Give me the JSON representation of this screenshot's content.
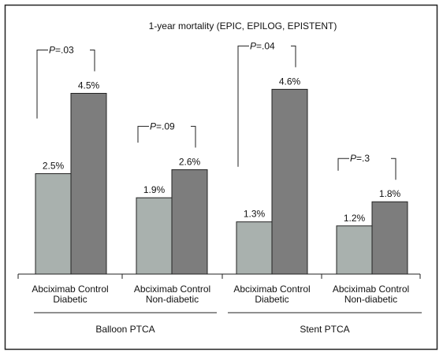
{
  "chart_data": {
    "type": "bar",
    "title": "1-year mortality (EPIC, EPILOG, EPISTENT)",
    "ylabel": "",
    "xlabel": "",
    "ylim": [
      0,
      5.4
    ],
    "series": [
      {
        "name": "Abciximab",
        "values": [
          2.5,
          1.9,
          1.3,
          1.2
        ],
        "labels": [
          "2.5%",
          "1.9%",
          "1.3%",
          "1.2%"
        ],
        "color": "#a9b1ae"
      },
      {
        "name": "Control",
        "values": [
          4.5,
          2.6,
          4.6,
          1.8
        ],
        "labels": [
          "4.5%",
          "2.6%",
          "4.6%",
          "1.8%"
        ],
        "color": "#7d7d7d"
      }
    ],
    "subgroups": [
      {
        "bar_labels": [
          "Abciximab",
          "Control"
        ],
        "label": "Diabetic",
        "p_prefix": "P",
        "p_suffix": "=.03"
      },
      {
        "bar_labels": [
          "Abciximab",
          "Control"
        ],
        "label": "Non-diabetic",
        "p_prefix": "P",
        "p_suffix": "=.09"
      },
      {
        "bar_labels": [
          "Abciximab",
          "Control"
        ],
        "label": "Diabetic",
        "p_prefix": "P",
        "p_suffix": "=.04"
      },
      {
        "bar_labels": [
          "Abciximab",
          "Control"
        ],
        "label": "Non-diabetic",
        "p_prefix": "P",
        "p_suffix": "=.3"
      }
    ],
    "groups": [
      "Balloon PTCA",
      "Stent PTCA"
    ],
    "grid": false,
    "legend": "none"
  }
}
